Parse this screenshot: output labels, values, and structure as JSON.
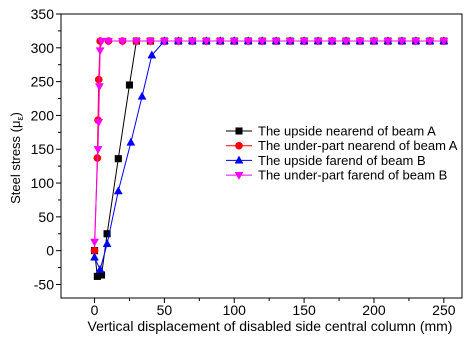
{
  "chart_data": {
    "type": "line",
    "xlabel": "Vertical displacement of disabled side central column (mm)",
    "ylabel": {
      "main": "Steel stress (μ",
      "sub": "ε",
      "end": ")"
    },
    "xlim": [
      -24,
      263
    ],
    "ylim": [
      -70,
      350
    ],
    "xticks": [
      0,
      50,
      100,
      150,
      200,
      250
    ],
    "yticks": [
      -50,
      0,
      50,
      100,
      150,
      200,
      250,
      300,
      350
    ],
    "grid": false,
    "legend_position": "center-right",
    "series": [
      {
        "name": "The upside nearend of beam A",
        "color": "#000000",
        "marker": "square",
        "points": [
          [
            0,
            0
          ],
          [
            2,
            -38
          ],
          [
            5,
            -36
          ],
          [
            9,
            25
          ],
          [
            17,
            136
          ],
          [
            25,
            245
          ],
          [
            30,
            310
          ],
          [
            40,
            310
          ],
          [
            50,
            310
          ],
          [
            60,
            310
          ],
          [
            70,
            310
          ],
          [
            80,
            310
          ],
          [
            90,
            310
          ],
          [
            100,
            310
          ],
          [
            110,
            310
          ],
          [
            120,
            310
          ],
          [
            130,
            310
          ],
          [
            140,
            310
          ],
          [
            150,
            310
          ],
          [
            160,
            310
          ],
          [
            170,
            310
          ],
          [
            180,
            310
          ],
          [
            190,
            310
          ],
          [
            200,
            310
          ],
          [
            210,
            310
          ],
          [
            220,
            310
          ],
          [
            230,
            310
          ],
          [
            240,
            310
          ],
          [
            250,
            310
          ]
        ]
      },
      {
        "name": "The under-part nearend of beam A",
        "color": "#ff0000",
        "marker": "circle",
        "points": [
          [
            0,
            0
          ],
          [
            2,
            137
          ],
          [
            2.5,
            193
          ],
          [
            3,
            253
          ],
          [
            4,
            310
          ],
          [
            10,
            310
          ],
          [
            20,
            310
          ],
          [
            30,
            310
          ],
          [
            40,
            310
          ],
          [
            50,
            310
          ],
          [
            60,
            310
          ],
          [
            70,
            310
          ],
          [
            80,
            310
          ],
          [
            90,
            310
          ],
          [
            100,
            310
          ],
          [
            110,
            310
          ],
          [
            120,
            310
          ],
          [
            130,
            310
          ],
          [
            140,
            310
          ],
          [
            150,
            310
          ],
          [
            160,
            310
          ],
          [
            170,
            310
          ],
          [
            180,
            310
          ],
          [
            190,
            310
          ],
          [
            200,
            310
          ],
          [
            210,
            310
          ],
          [
            220,
            310
          ],
          [
            230,
            310
          ],
          [
            240,
            310
          ],
          [
            250,
            310
          ]
        ]
      },
      {
        "name": "The upside farend of beam B",
        "color": "#0000ff",
        "marker": "triangle-up",
        "points": [
          [
            0,
            -10
          ],
          [
            4,
            -28
          ],
          [
            9,
            10
          ],
          [
            17,
            88
          ],
          [
            26,
            160
          ],
          [
            34,
            228
          ],
          [
            41,
            289
          ],
          [
            50,
            310
          ],
          [
            60,
            310
          ],
          [
            70,
            310
          ],
          [
            80,
            310
          ],
          [
            90,
            310
          ],
          [
            100,
            310
          ],
          [
            110,
            310
          ],
          [
            120,
            310
          ],
          [
            130,
            310
          ],
          [
            140,
            310
          ],
          [
            150,
            310
          ],
          [
            160,
            310
          ],
          [
            170,
            310
          ],
          [
            180,
            310
          ],
          [
            190,
            310
          ],
          [
            200,
            310
          ],
          [
            210,
            310
          ],
          [
            220,
            310
          ],
          [
            230,
            310
          ],
          [
            240,
            310
          ],
          [
            250,
            310
          ]
        ]
      },
      {
        "name": "The under-part farend of beam B",
        "color": "#ff00ff",
        "marker": "triangle-down",
        "points": [
          [
            0,
            13
          ],
          [
            2.5,
            150
          ],
          [
            3,
            190
          ],
          [
            3.5,
            243
          ],
          [
            4,
            296
          ],
          [
            5,
            310
          ],
          [
            10,
            310
          ],
          [
            20,
            310
          ],
          [
            30,
            310
          ],
          [
            40,
            310
          ],
          [
            50,
            310
          ],
          [
            60,
            310
          ],
          [
            70,
            310
          ],
          [
            80,
            310
          ],
          [
            90,
            310
          ],
          [
            100,
            310
          ],
          [
            110,
            310
          ],
          [
            120,
            310
          ],
          [
            130,
            310
          ],
          [
            140,
            310
          ],
          [
            150,
            310
          ],
          [
            160,
            310
          ],
          [
            170,
            310
          ],
          [
            180,
            310
          ],
          [
            190,
            310
          ],
          [
            200,
            310
          ],
          [
            210,
            310
          ],
          [
            220,
            310
          ],
          [
            230,
            310
          ],
          [
            240,
            310
          ],
          [
            250,
            310
          ]
        ]
      }
    ]
  }
}
